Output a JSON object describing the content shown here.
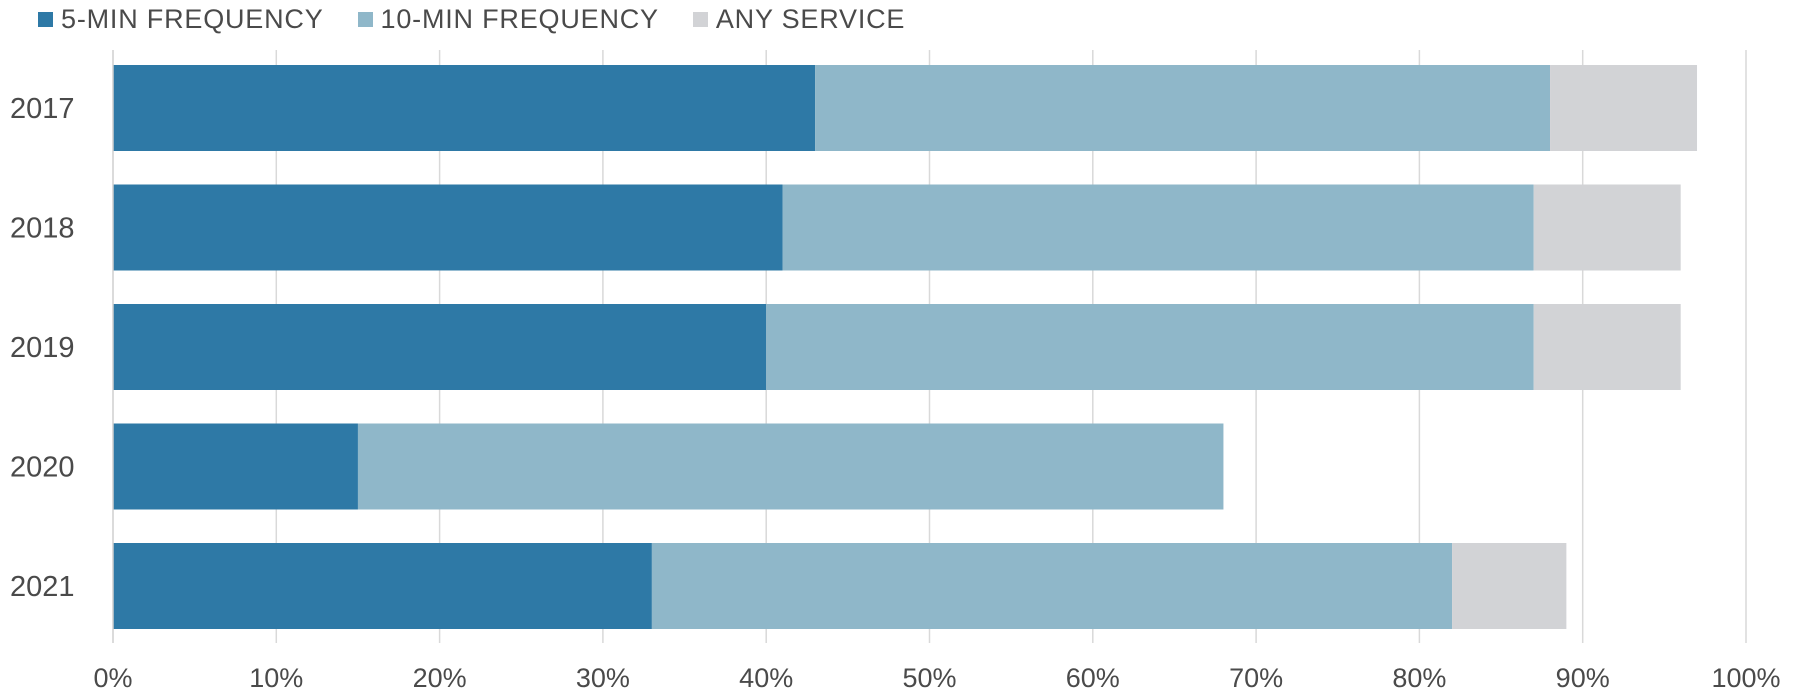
{
  "chart_data": {
    "type": "bar",
    "orientation": "horizontal",
    "stacked": true,
    "categories": [
      "2017",
      "2018",
      "2019",
      "2020",
      "2021"
    ],
    "series": [
      {
        "name": "5-MIN FREQUENCY",
        "color": "#2e79a6",
        "values": [
          43,
          41,
          40,
          15,
          33
        ]
      },
      {
        "name": "10-MIN FREQUENCY",
        "color": "#8fb7c9",
        "values": [
          45,
          46,
          47,
          53,
          49
        ]
      },
      {
        "name": "ANY SERVICE",
        "color": "#d2d3d6",
        "values": [
          9,
          9,
          9,
          0,
          7
        ]
      }
    ],
    "xlim": [
      0,
      100
    ],
    "xticks": [
      "0%",
      "10%",
      "20%",
      "30%",
      "40%",
      "50%",
      "60%",
      "70%",
      "80%",
      "90%",
      "100%"
    ],
    "grid": true,
    "legend_position": "top-left"
  }
}
